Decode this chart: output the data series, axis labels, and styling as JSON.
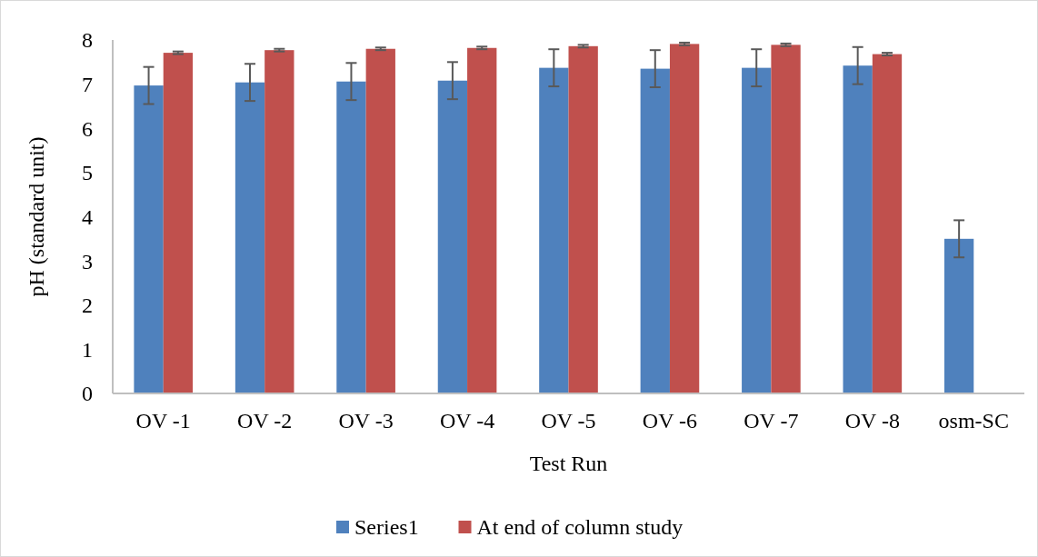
{
  "chart_data": {
    "type": "bar",
    "xlabel": "Test Run",
    "ylabel": "pH (standard unit)",
    "categories": [
      "OV -1",
      "OV -2",
      "OV -3",
      "OV -4",
      "OV -5",
      "OV -6",
      "OV -7",
      "OV -8",
      "osm-SC"
    ],
    "series": [
      {
        "name": "Series1",
        "color": "#4f81bd",
        "values": [
          6.97,
          7.04,
          7.06,
          7.08,
          7.37,
          7.35,
          7.37,
          7.42,
          3.5
        ],
        "errors": [
          0.42,
          0.42,
          0.42,
          0.42,
          0.42,
          0.42,
          0.42,
          0.42,
          0.42
        ]
      },
      {
        "name": "At end of column study",
        "color": "#c0504d",
        "values": [
          7.71,
          7.77,
          7.8,
          7.82,
          7.86,
          7.91,
          7.89,
          7.68,
          null
        ],
        "errors": [
          0.03,
          0.03,
          0.03,
          0.03,
          0.03,
          0.03,
          0.03,
          0.03,
          null
        ]
      }
    ],
    "ylim": [
      0,
      8
    ],
    "yticks": [
      0,
      1,
      2,
      3,
      4,
      5,
      6,
      7,
      8
    ],
    "grid": false,
    "legend": "bottom"
  }
}
